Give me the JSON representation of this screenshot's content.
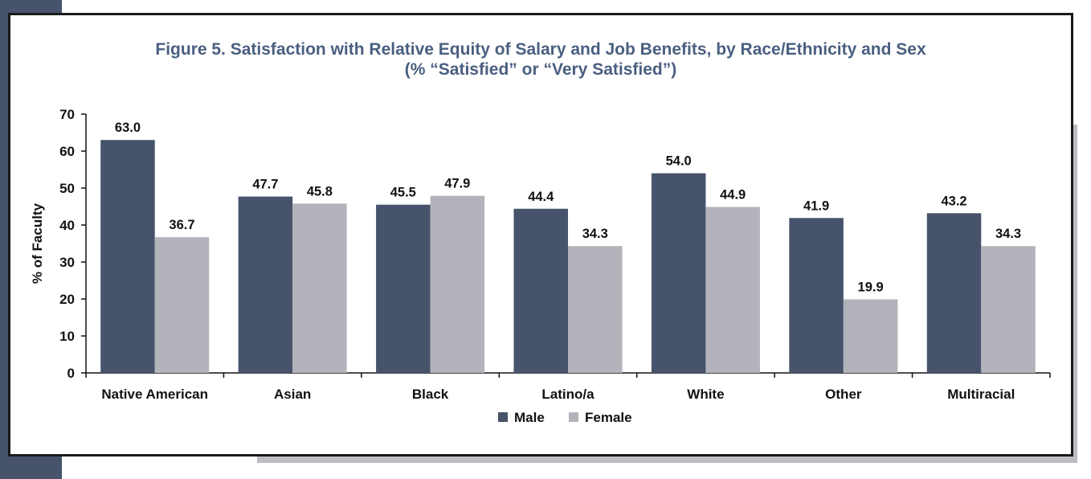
{
  "chart_data": {
    "type": "bar",
    "title": "Figure 5. Satisfaction with Relative Equity of Salary and Job Benefits, by Race/Ethnicity and Sex",
    "subtitle": "(% “Satisfied” or “Very Satisfied”)",
    "xlabel": "",
    "ylabel": "% of Faculty",
    "ylim": [
      0,
      70
    ],
    "yticks": [
      0,
      10,
      20,
      30,
      40,
      50,
      60,
      70
    ],
    "categories": [
      "Native American",
      "Asian",
      "Black",
      "Latino/a",
      "White",
      "Other",
      "Multiracial"
    ],
    "series": [
      {
        "name": "Male",
        "color": "#46536b",
        "values": [
          63.0,
          47.7,
          45.5,
          44.4,
          54.0,
          41.9,
          43.2
        ]
      },
      {
        "name": "Female",
        "color": "#b3b3bb",
        "values": [
          36.7,
          45.8,
          47.9,
          34.3,
          44.9,
          19.9,
          34.3
        ]
      }
    ],
    "legend_position": "bottom-center",
    "grid": false,
    "data_labels": true
  }
}
